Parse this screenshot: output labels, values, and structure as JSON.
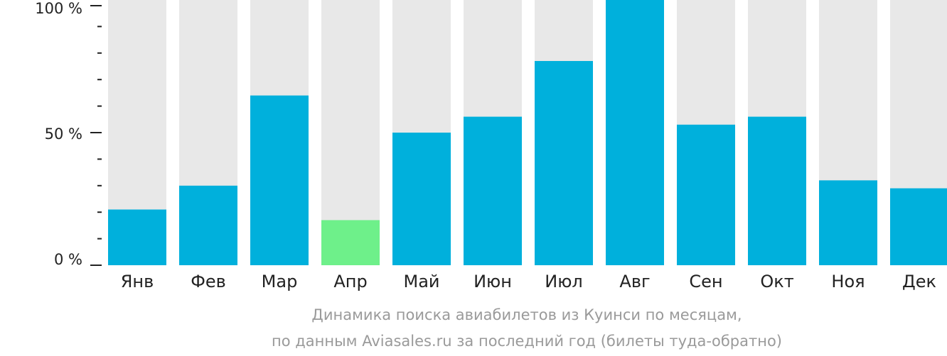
{
  "chart_data": {
    "type": "bar",
    "categories": [
      "Янв",
      "Фев",
      "Мар",
      "Апр",
      "Май",
      "Июн",
      "Июл",
      "Авг",
      "Сен",
      "Окт",
      "Ноя",
      "Дек"
    ],
    "values": [
      21,
      30,
      64,
      17,
      50,
      56,
      77,
      100,
      53,
      56,
      32,
      29
    ],
    "ylim": [
      0,
      100
    ],
    "yticks": [
      "0 %",
      "50 %",
      "100 %"
    ],
    "highlight_index": 3,
    "colors": {
      "bar": "#00b0dc",
      "highlight": "#6ef08a",
      "background_bar": "#e8e8e8"
    },
    "caption_line1": "Динамика поиска авиабилетов из Куинси по месяцам,",
    "caption_line2": "по данным Aviasales.ru за последний год (билеты туда-обратно)"
  }
}
